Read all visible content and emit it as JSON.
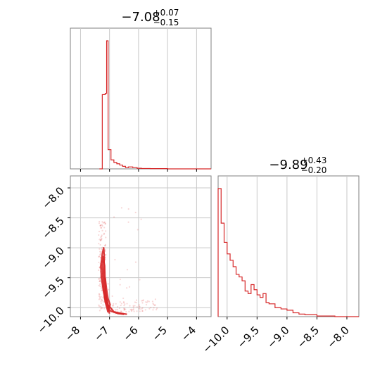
{
  "chart_data": {
    "type": "corner",
    "color": "#d62728",
    "grid": true,
    "panels": [
      {
        "id": "hist-1",
        "type": "histogram",
        "title": {
          "main": "−7.08",
          "upper": "+0.07",
          "lower": "−0.15"
        },
        "xlim": [
          -8.35,
          -3.5
        ],
        "ticks": [
          -8,
          -7,
          -6,
          -5,
          -4
        ],
        "bin_edges": [
          -7.35,
          -7.25,
          -7.15,
          -7.1,
          -7.05,
          -6.95,
          -6.85,
          -6.75,
          -6.65,
          -6.55,
          -6.45,
          -6.35,
          -6.2,
          -6.05,
          -5.9,
          -5.6,
          -5.0,
          -3.5
        ],
        "counts": [
          0.0,
          0.58,
          0.59,
          1.0,
          0.15,
          0.07,
          0.05,
          0.04,
          0.03,
          0.02,
          0.01,
          0.015,
          0.01,
          0.005,
          0.003,
          0.002,
          0.0
        ]
      },
      {
        "id": "scatter-2d",
        "type": "scatter",
        "xlim": [
          -8.35,
          -3.5
        ],
        "ylim": [
          -10.15,
          -7.8
        ],
        "xticks": [
          -8,
          -7,
          -6,
          -5,
          -4
        ],
        "xtick_labels": [
          "−8",
          "−7",
          "−6",
          "−5",
          "−4"
        ],
        "yticks": [
          -8.0,
          -8.5,
          -9.0,
          -9.5,
          -10.0
        ],
        "ytick_labels": [
          "−8.0",
          "−8.5",
          "−9.0",
          "−9.5",
          "−10.0"
        ],
        "contours": [
          [
            [
              -7.05,
              -10.08
            ],
            [
              -7.15,
              -9.9
            ],
            [
              -7.22,
              -9.6
            ],
            [
              -7.25,
              -9.3
            ],
            [
              -7.22,
              -9.15
            ],
            [
              -7.17,
              -9.3
            ],
            [
              -7.15,
              -9.6
            ],
            [
              -7.1,
              -9.9
            ],
            [
              -7.0,
              -10.05
            ],
            [
              -6.7,
              -10.1
            ],
            [
              -6.5,
              -10.11
            ]
          ],
          [
            [
              -7.0,
              -10.1
            ],
            [
              -7.1,
              -9.95
            ],
            [
              -7.2,
              -9.75
            ],
            [
              -7.28,
              -9.5
            ],
            [
              -7.3,
              -9.3
            ],
            [
              -7.25,
              -9.1
            ],
            [
              -7.2,
              -9.0
            ],
            [
              -7.18,
              -9.15
            ],
            [
              -7.2,
              -9.45
            ],
            [
              -7.15,
              -9.75
            ],
            [
              -7.05,
              -9.95
            ],
            [
              -6.85,
              -10.07
            ],
            [
              -6.55,
              -10.1
            ],
            [
              -6.4,
              -10.11
            ]
          ],
          [
            [
              -7.15,
              -9.5
            ],
            [
              -7.1,
              -9.7
            ],
            [
              -7.05,
              -9.85
            ],
            [
              -6.98,
              -9.95
            ],
            [
              -7.02,
              -10.02
            ],
            [
              -7.08,
              -9.9
            ],
            [
              -7.12,
              -9.72
            ],
            [
              -7.15,
              -9.5
            ]
          ]
        ]
      },
      {
        "id": "hist-2",
        "type": "histogram",
        "title": {
          "main": "−9.89",
          "upper": "+0.43",
          "lower": "−0.20"
        },
        "xlim": [
          -10.15,
          -7.8
        ],
        "ticks": [
          -10.0,
          -9.5,
          -9.0,
          -8.5,
          -8.0
        ],
        "tick_labels": [
          "−10.0",
          "−9.5",
          "−9.0",
          "−8.5",
          "−8.0"
        ],
        "bin_edges": [
          -10.15,
          -10.1,
          -10.05,
          -10.0,
          -9.95,
          -9.9,
          -9.85,
          -9.8,
          -9.75,
          -9.7,
          -9.65,
          -9.6,
          -9.55,
          -9.5,
          -9.45,
          -9.4,
          -9.35,
          -9.3,
          -9.2,
          -9.1,
          -9.0,
          -8.9,
          -8.8,
          -8.7,
          -8.5,
          -8.2,
          -7.8
        ],
        "counts": [
          1.0,
          0.73,
          0.58,
          0.49,
          0.44,
          0.39,
          0.33,
          0.31,
          0.28,
          0.2,
          0.18,
          0.25,
          0.21,
          0.17,
          0.15,
          0.18,
          0.11,
          0.1,
          0.07,
          0.06,
          0.05,
          0.03,
          0.02,
          0.015,
          0.005,
          0.0
        ]
      }
    ]
  }
}
